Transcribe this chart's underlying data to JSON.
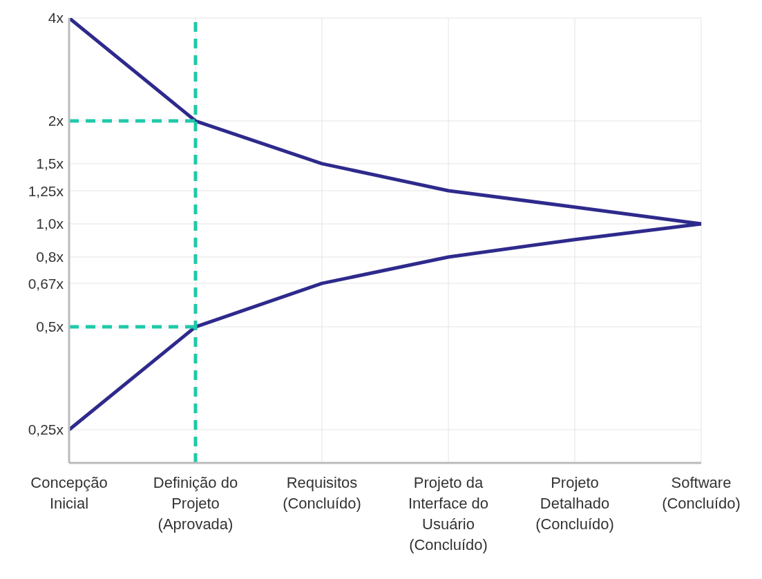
{
  "chart_data": {
    "type": "line",
    "categories": [
      "Concepção Inicial",
      "Definição do Projeto (Aprovada)",
      "Requisitos (Concluído)",
      "Projeto da Interface do Usuário (Concluído)",
      "Projeto Detalhado (Concluído)",
      "Software (Concluído)"
    ],
    "series": [
      {
        "color": "#2e2a8c",
        "values": [
          4,
          2,
          1.5,
          1.25,
          1.12,
          1.0
        ]
      },
      {
        "color": "#2e2a8c",
        "values": [
          0.25,
          0.5,
          0.67,
          0.8,
          0.9,
          1.0
        ]
      }
    ],
    "log": "y",
    "ylim": [
      0.2,
      4
    ],
    "yticks": [
      {
        "value": 0.25,
        "label": "0,25x"
      },
      {
        "value": 0.5,
        "label": "0,5x"
      },
      {
        "value": 0.67,
        "label": "0,67x"
      },
      {
        "value": 0.8,
        "label": "0,8x"
      },
      {
        "value": 1.0,
        "label": "1,0x"
      },
      {
        "value": 1.25,
        "label": "1,25x"
      },
      {
        "value": 1.5,
        "label": "1,5x"
      },
      {
        "value": 2,
        "label": "2x"
      },
      {
        "value": 4,
        "label": "4x"
      }
    ],
    "grid": true,
    "marker": "none",
    "line_style": "solid",
    "ref_lines": [
      {
        "axis": "x",
        "value": "Definição do Projeto (Aprovada)",
        "color": "#1fc9a8",
        "line_style": "dashed"
      },
      {
        "axis": "y",
        "value": 2,
        "color": "#1fc9a8",
        "line_style": "dashed"
      },
      {
        "axis": "y",
        "value": 0.5,
        "color": "#1fc9a8",
        "line_style": "dashed"
      }
    ]
  }
}
